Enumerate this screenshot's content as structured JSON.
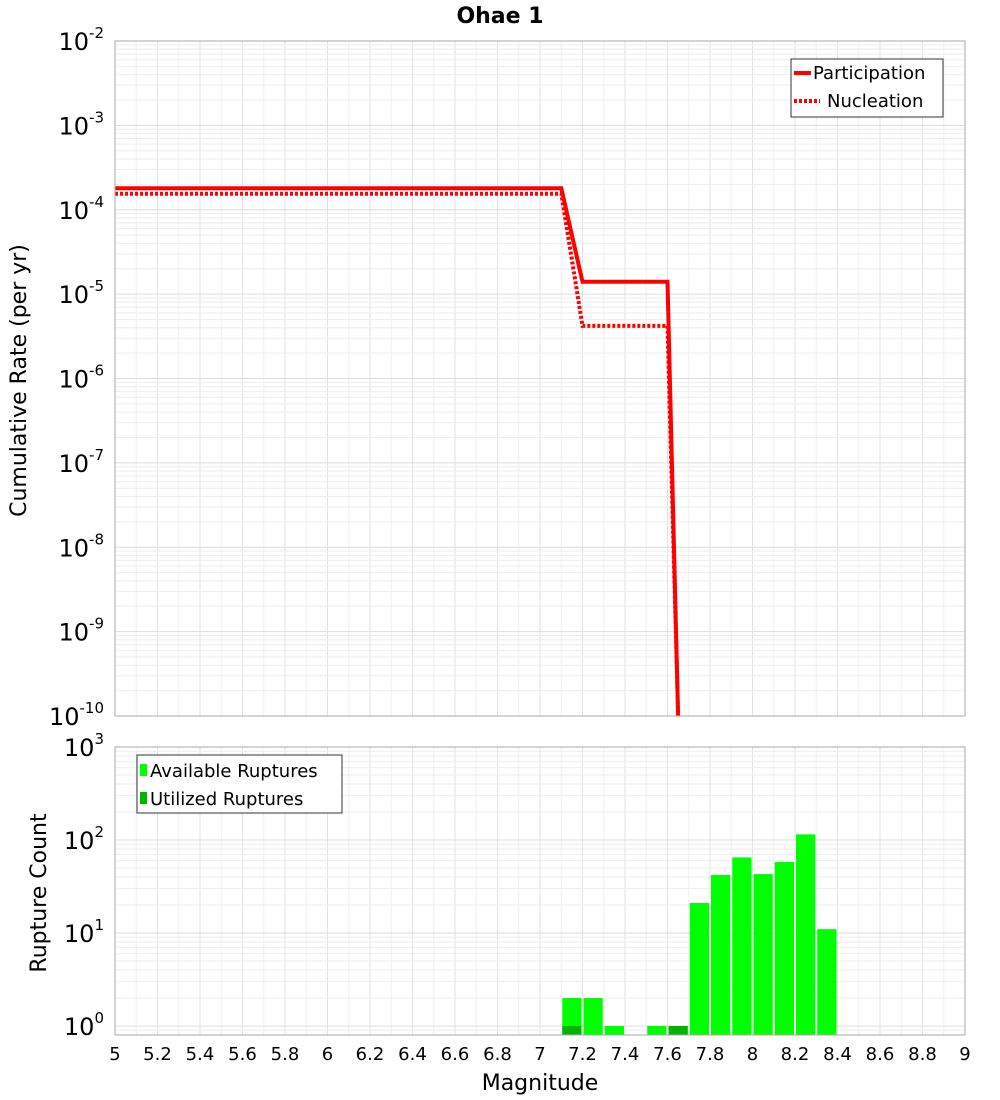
{
  "chart_data": [
    {
      "type": "line",
      "title": "Ohae 1",
      "ylabel": "Cumulative Rate (per yr)",
      "xlabel": "",
      "yscale": "log",
      "ylim": [
        1e-10,
        0.01
      ],
      "xlim": [
        5,
        9
      ],
      "yticks": [
        {
          "base": "10",
          "exp": "-10",
          "value": 1e-10
        },
        {
          "base": "10",
          "exp": "-9",
          "value": 1e-09
        },
        {
          "base": "10",
          "exp": "-8",
          "value": 1e-08
        },
        {
          "base": "10",
          "exp": "-7",
          "value": 1e-07
        },
        {
          "base": "10",
          "exp": "-6",
          "value": 1e-06
        },
        {
          "base": "10",
          "exp": "-5",
          "value": 1e-05
        },
        {
          "base": "10",
          "exp": "-4",
          "value": 0.0001
        },
        {
          "base": "10",
          "exp": "-3",
          "value": 0.001
        },
        {
          "base": "10",
          "exp": "-2",
          "value": 0.01
        }
      ],
      "legend_position": "top-right",
      "series": [
        {
          "name": "Participation",
          "style": "solid",
          "color": "#ff0000",
          "x": [
            5,
            7.1,
            7.2,
            7.6,
            7.65
          ],
          "y": [
            0.00018,
            0.00018,
            1.4e-05,
            1.4e-05,
            1e-10
          ]
        },
        {
          "name": "Nucleation",
          "style": "dotted",
          "color": "#ff0000",
          "x": [
            5,
            7.1,
            7.2,
            7.6,
            7.65
          ],
          "y": [
            0.000155,
            0.000155,
            4.2e-06,
            4.2e-06,
            1e-10
          ]
        }
      ]
    },
    {
      "type": "bar",
      "title": "",
      "ylabel": "Rupture Count",
      "xlabel": "Magnitude",
      "yscale": "log",
      "ylim": [
        0.8,
        1000
      ],
      "xlim": [
        5,
        9
      ],
      "xticks": [
        "5",
        "5.2",
        "5.4",
        "5.6",
        "5.8",
        "6",
        "6.2",
        "6.4",
        "6.6",
        "6.8",
        "7",
        "7.2",
        "7.4",
        "7.6",
        "7.8",
        "8",
        "8.2",
        "8.4",
        "8.6",
        "8.8",
        "9"
      ],
      "yticks": [
        {
          "base": "10",
          "exp": "0",
          "value": 1
        },
        {
          "base": "10",
          "exp": "1",
          "value": 10
        },
        {
          "base": "10",
          "exp": "2",
          "value": 100
        },
        {
          "base": "10",
          "exp": "3",
          "value": 1000
        }
      ],
      "legend_position": "top-left",
      "bin_width": 0.1,
      "series": [
        {
          "name": "Available Ruptures",
          "color": "#00ff00",
          "x": [
            7.15,
            7.25,
            7.35,
            7.55,
            7.65,
            7.75,
            7.85,
            7.95,
            8.05,
            8.15,
            8.25,
            8.35
          ],
          "values": [
            2,
            2,
            1,
            1,
            1,
            21,
            42,
            65,
            43,
            58,
            115,
            11
          ]
        },
        {
          "name": "Utilized Ruptures",
          "color": "#00b400",
          "x": [
            7.15,
            7.65
          ],
          "values": [
            1,
            1
          ]
        }
      ]
    }
  ]
}
